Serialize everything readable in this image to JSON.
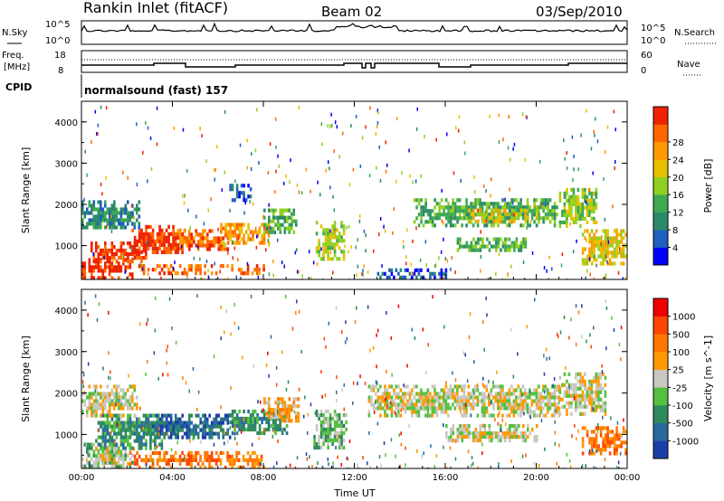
{
  "header": {
    "station": "Rankin Inlet (fitACF)",
    "beam": "Beam 02",
    "date": "03/Sep/2010"
  },
  "top_panels": {
    "nsky_label": "N.Sky",
    "nsky_ticks": [
      "10^5",
      "10^0"
    ],
    "nsearch_label": "N.Search",
    "freq_label_1": "Freq.",
    "freq_label_2": "[MHz]",
    "freq_ticks": [
      "18",
      "8"
    ],
    "nave_label": "Nave",
    "nave_ticks": [
      "60",
      "0"
    ],
    "cpid_label": "CPID",
    "cpid_text": "normalsound (fast) 157"
  },
  "chart_data": [
    {
      "type": "heatmap",
      "parameter": "Power",
      "xlabel": "Time UT",
      "ylabel": "Slant Range [km]",
      "x_ticks": [
        "00:00",
        "04:00",
        "08:00",
        "12:00",
        "16:00",
        "20:00",
        "00:00"
      ],
      "xlim_hours": [
        0,
        24
      ],
      "ylim": [
        180,
        4500
      ],
      "y_ticks": [
        1000,
        2000,
        3000,
        4000
      ],
      "colorbar": {
        "label": "Power [dB]",
        "tick_labels": [
          "4",
          "8",
          "12",
          "16",
          "20",
          "24",
          "28"
        ],
        "colors": [
          "#0000ff",
          "#1f5fbf",
          "#2a8a6a",
          "#3fa850",
          "#8fd020",
          "#e6c000",
          "#ff9900",
          "#ff6600",
          "#ee2200"
        ]
      },
      "regions": [
        {
          "t0": 0.0,
          "t1": 2.2,
          "r0": 250,
          "r1": 700,
          "level": 8
        },
        {
          "t0": 0.4,
          "t1": 2.8,
          "r0": 600,
          "r1": 1100,
          "level": 8
        },
        {
          "t0": 2.2,
          "t1": 4.5,
          "r0": 800,
          "r1": 1500,
          "level": 8
        },
        {
          "t0": 4.0,
          "t1": 6.4,
          "r0": 900,
          "r1": 1400,
          "level": 7
        },
        {
          "t0": 6.0,
          "t1": 8.2,
          "r0": 1100,
          "r1": 1550,
          "level": 6
        },
        {
          "t0": 2.5,
          "t1": 8.0,
          "r0": 300,
          "r1": 550,
          "level": 7
        },
        {
          "t0": 0.0,
          "t1": 2.5,
          "r0": 1400,
          "r1": 2100,
          "level": 2
        },
        {
          "t0": 8.0,
          "t1": 9.4,
          "r0": 1300,
          "r1": 1900,
          "level": 3
        },
        {
          "t0": 10.3,
          "t1": 11.5,
          "r0": 700,
          "r1": 1600,
          "level": 4
        },
        {
          "t0": 14.6,
          "t1": 21.0,
          "r0": 1500,
          "r1": 2150,
          "level": 3
        },
        {
          "t0": 17.0,
          "t1": 20.0,
          "r0": 1600,
          "r1": 1900,
          "level": 5
        },
        {
          "t0": 16.5,
          "t1": 19.5,
          "r0": 850,
          "r1": 1200,
          "level": 3
        },
        {
          "t0": 21.0,
          "t1": 22.6,
          "r0": 1500,
          "r1": 2400,
          "level": 4
        },
        {
          "t0": 22.0,
          "t1": 24.0,
          "r0": 600,
          "r1": 1400,
          "level": 5
        },
        {
          "t0": 6.5,
          "t1": 7.4,
          "r0": 2100,
          "r1": 2500,
          "level": 1
        },
        {
          "t0": 13.0,
          "t1": 16.0,
          "r0": 200,
          "r1": 450,
          "level": 1
        }
      ]
    },
    {
      "type": "heatmap",
      "parameter": "Velocity",
      "xlabel": "Time UT",
      "ylabel": "Slant Range [km]",
      "x_ticks": [
        "00:00",
        "04:00",
        "08:00",
        "12:00",
        "16:00",
        "20:00",
        "00:00"
      ],
      "xlim_hours": [
        0,
        24
      ],
      "ylim": [
        180,
        4500
      ],
      "y_ticks": [
        1000,
        2000,
        3000,
        4000
      ],
      "colorbar": {
        "label": "Velocity [m s^-1]",
        "tick_labels": [
          "1000",
          "500",
          "100",
          "25",
          "-25",
          "-100",
          "-500",
          "-1000"
        ],
        "colors": [
          "#1a3fa8",
          "#2a6aa0",
          "#2e8a5a",
          "#55c040",
          "#c8c8c0",
          "#ff9900",
          "#ff7700",
          "#ff4400",
          "#ee0000"
        ]
      },
      "regions": [
        {
          "t0": 0.0,
          "t1": 2.2,
          "r0": 250,
          "r1": 800,
          "level": 3
        },
        {
          "t0": 0.6,
          "t1": 3.5,
          "r0": 700,
          "r1": 1500,
          "level": 2
        },
        {
          "t0": 3.0,
          "t1": 6.5,
          "r0": 900,
          "r1": 1500,
          "level": 1
        },
        {
          "t0": 6.5,
          "t1": 9.0,
          "r0": 1000,
          "r1": 1600,
          "level": 2
        },
        {
          "t0": 2.0,
          "t1": 8.0,
          "r0": 250,
          "r1": 600,
          "level": 6
        },
        {
          "t0": 0.0,
          "t1": 2.4,
          "r0": 1500,
          "r1": 2200,
          "level": 4
        },
        {
          "t0": 8.0,
          "t1": 9.5,
          "r0": 1300,
          "r1": 1900,
          "level": 5
        },
        {
          "t0": 10.2,
          "t1": 11.6,
          "r0": 700,
          "r1": 1600,
          "level": 3
        },
        {
          "t0": 12.6,
          "t1": 21.0,
          "r0": 1500,
          "r1": 2200,
          "level": 4
        },
        {
          "t0": 16.0,
          "t1": 20.0,
          "r0": 850,
          "r1": 1250,
          "level": 4
        },
        {
          "t0": 21.0,
          "t1": 23.0,
          "r0": 1500,
          "r1": 2500,
          "level": 4
        },
        {
          "t0": 22.0,
          "t1": 24.0,
          "r0": 550,
          "r1": 1200,
          "level": 6
        },
        {
          "t0": 0.5,
          "t1": 1.6,
          "r0": 300,
          "r1": 700,
          "level": 4
        }
      ]
    }
  ]
}
